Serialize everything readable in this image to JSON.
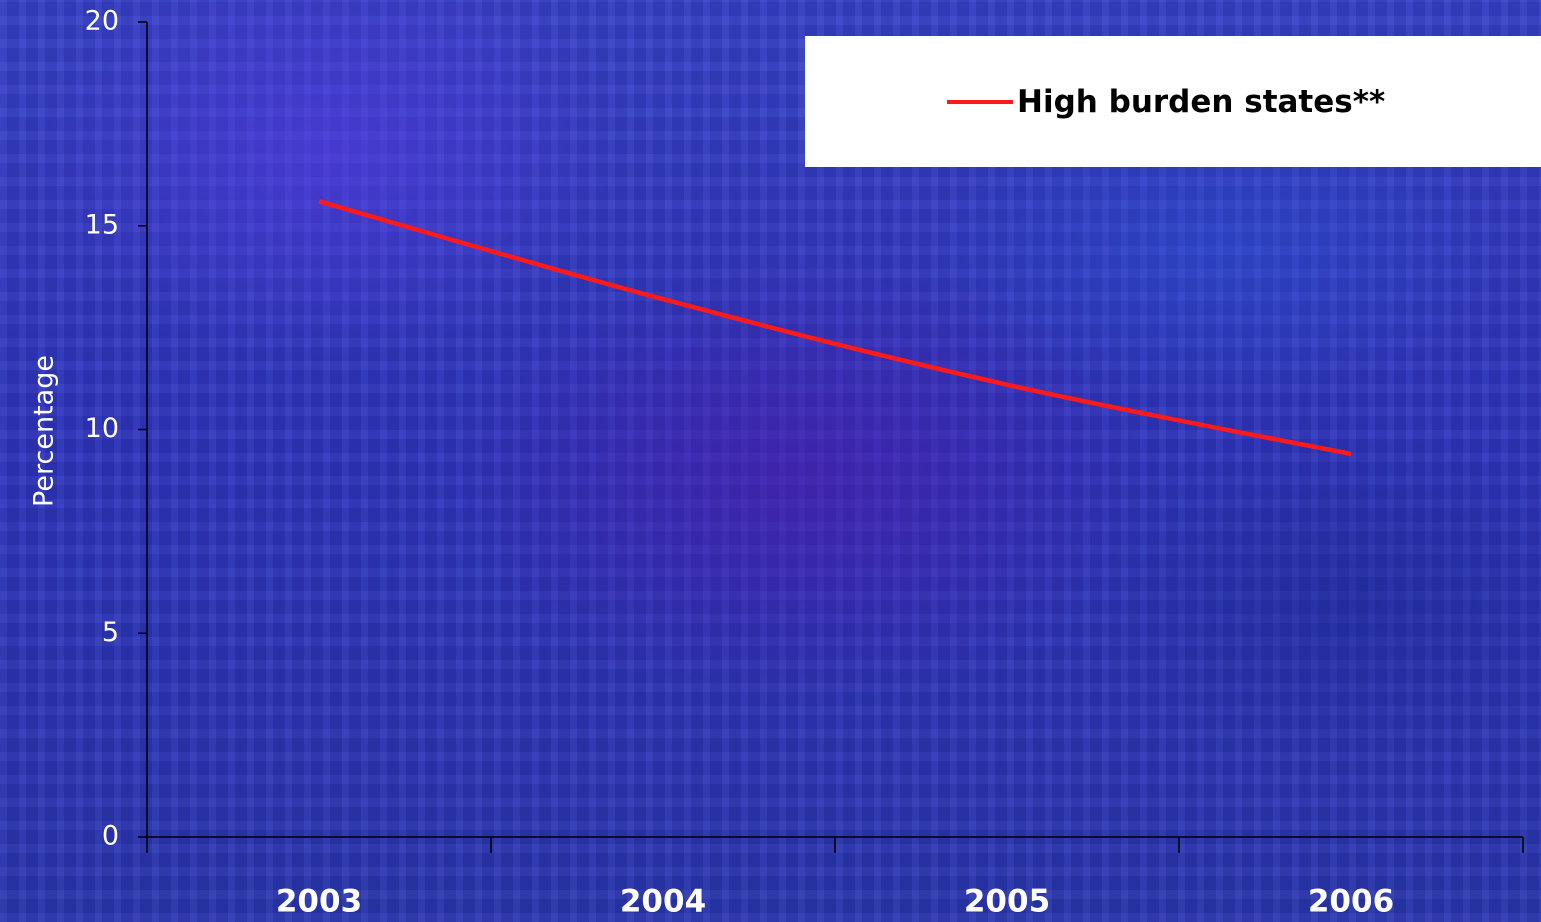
{
  "chart_data": {
    "type": "line",
    "title": "",
    "xlabel": "",
    "ylabel": "Percentage",
    "categories": [
      "2003",
      "2004",
      "2005",
      "2006"
    ],
    "ylim": [
      0,
      20
    ],
    "yticks": [
      0,
      5,
      10,
      15,
      20
    ],
    "grid": false,
    "legend_placement": "top-right",
    "series": [
      {
        "name": "High burden states**",
        "color": "#ff1a1a",
        "values": [
          15.6,
          13.2,
          11.1,
          9.4
        ]
      }
    ]
  }
}
